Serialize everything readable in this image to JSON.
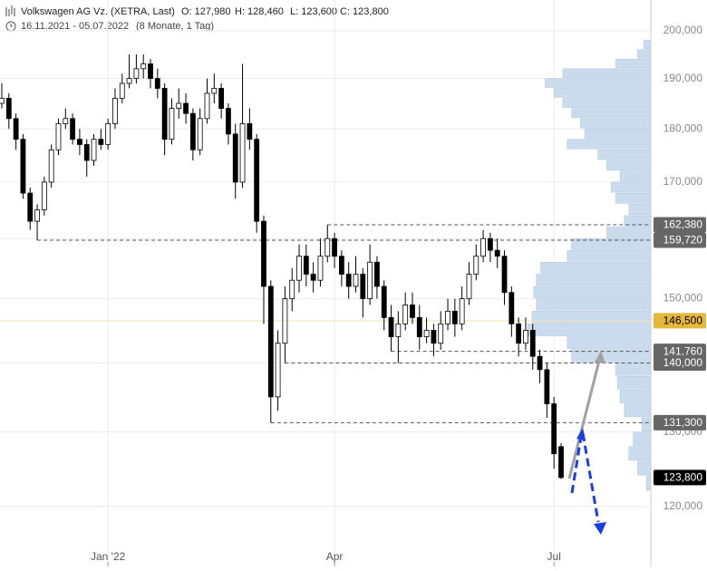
{
  "chart_data": {
    "type": "candlestick",
    "header": {
      "title": "Volkswagen AG Vz. (XETRA, Last)",
      "ohlc": [
        "O: 127,980",
        "H: 128,460",
        "L: 123,600",
        "C: 123,800"
      ],
      "range": "16.11.2021 - 05.07.2022",
      "period": "(8 Monate, 1 Tag)"
    },
    "categories": [
      null,
      null,
      null,
      null,
      null,
      null,
      null,
      null,
      null,
      null,
      null,
      null,
      null,
      null,
      null,
      "Jan '22",
      null,
      null,
      null,
      null,
      null,
      null,
      null,
      null,
      null,
      null,
      null,
      null,
      null,
      null,
      null,
      null,
      null,
      null,
      null,
      null,
      null,
      null,
      null,
      null,
      null,
      null,
      null,
      null,
      null,
      null,
      null,
      "Apr",
      null,
      null,
      null,
      null,
      null,
      null,
      null,
      null,
      null,
      null,
      null,
      null,
      null,
      null,
      null,
      null,
      null,
      null,
      null,
      null,
      null,
      null,
      null,
      null,
      null,
      null,
      null,
      null,
      null,
      null,
      "Jul",
      null
    ],
    "open": [
      185000,
      186000,
      182000,
      178000,
      168000,
      163000,
      165000,
      170000,
      176000,
      181000,
      182000,
      178000,
      177000,
      174000,
      178000,
      177000,
      181000,
      186000,
      189000,
      190000,
      192000,
      193000,
      190000,
      188000,
      178000,
      184000,
      185000,
      183000,
      176000,
      182000,
      187000,
      188000,
      184000,
      179000,
      170000,
      181000,
      178000,
      163000,
      152000,
      135000,
      143000,
      150000,
      153000,
      157000,
      154000,
      153000,
      157000,
      160000,
      157000,
      154000,
      152000,
      154000,
      150000,
      156000,
      152000,
      147000,
      144000,
      146000,
      149000,
      147000,
      144000,
      145000,
      143000,
      146000,
      148000,
      146000,
      150000,
      154000,
      157000,
      160000,
      158000,
      157000,
      151000,
      146000,
      143000,
      145000,
      141000,
      139000,
      134000,
      127980
    ],
    "high": [
      189000,
      187000,
      183000,
      179000,
      169000,
      166000,
      171000,
      177000,
      182000,
      184000,
      183000,
      180000,
      178000,
      179000,
      180000,
      182000,
      188000,
      191000,
      195000,
      195000,
      195000,
      194000,
      192000,
      189000,
      186000,
      188000,
      187000,
      184000,
      184000,
      190000,
      191000,
      189000,
      185000,
      181000,
      193000,
      184000,
      179000,
      164000,
      153000,
      145000,
      152000,
      155000,
      159000,
      159000,
      156000,
      160000,
      162380,
      161000,
      158000,
      156000,
      157000,
      155000,
      159000,
      157000,
      153000,
      149000,
      148000,
      151000,
      151000,
      149000,
      147000,
      146000,
      148000,
      150000,
      150000,
      152000,
      156000,
      159000,
      161500,
      161000,
      160000,
      158000,
      152000,
      147000,
      147000,
      146000,
      142000,
      140000,
      135000,
      128460
    ],
    "low": [
      184000,
      180000,
      176000,
      167000,
      161500,
      159720,
      164000,
      169000,
      175000,
      180000,
      177000,
      175000,
      171000,
      173000,
      176000,
      176000,
      180000,
      185000,
      188000,
      189000,
      190000,
      188000,
      186000,
      175000,
      177000,
      182000,
      181000,
      174000,
      175000,
      181000,
      185000,
      182000,
      177000,
      167000,
      169000,
      176000,
      161000,
      146000,
      131300,
      133000,
      140000,
      148000,
      151000,
      152000,
      151000,
      152000,
      156000,
      155000,
      152000,
      150000,
      151000,
      147000,
      149000,
      150000,
      145000,
      141760,
      140000,
      145000,
      146000,
      142000,
      143000,
      141000,
      142000,
      145000,
      144000,
      145000,
      149000,
      153000,
      156000,
      156000,
      155000,
      149000,
      144000,
      141000,
      142000,
      139000,
      137000,
      132000,
      125000,
      123600
    ],
    "close": [
      186000,
      182000,
      178000,
      168000,
      163000,
      165000,
      170000,
      176000,
      181000,
      182000,
      178000,
      177000,
      174000,
      178000,
      177000,
      181000,
      186000,
      189000,
      190000,
      192000,
      193000,
      190000,
      188000,
      178000,
      184000,
      185000,
      183000,
      176000,
      182000,
      187000,
      188000,
      184000,
      179000,
      170000,
      181000,
      178000,
      163000,
      152000,
      135000,
      143000,
      150000,
      153000,
      157000,
      154000,
      153000,
      157000,
      160000,
      157000,
      154000,
      152000,
      154000,
      150000,
      156000,
      152000,
      147000,
      144000,
      146000,
      149000,
      147000,
      144000,
      145000,
      143000,
      146000,
      148000,
      146000,
      150000,
      154000,
      157000,
      160000,
      158000,
      157000,
      151000,
      146000,
      143000,
      145000,
      141000,
      139000,
      134000,
      127000,
      123800
    ],
    "ylim": [
      115300,
      206700
    ],
    "log_scale": true,
    "grid": true,
    "yticks": [
      {
        "value": 120000,
        "label": "120,000"
      },
      {
        "value": 130000,
        "label": "130,000"
      },
      {
        "value": 140000,
        "label": "140,000"
      },
      {
        "value": 150000,
        "label": "150,000"
      },
      {
        "value": 160000,
        "label": "160,000"
      },
      {
        "value": 170000,
        "label": "170,000"
      },
      {
        "value": 180000,
        "label": "180,000"
      },
      {
        "value": 190000,
        "label": "190,000"
      },
      {
        "value": 200000,
        "label": "200,000"
      }
    ],
    "price_labels": [
      {
        "value": 162380,
        "label": "162,380",
        "style": "dashed",
        "color": "#666666"
      },
      {
        "value": 159720,
        "label": "159,720",
        "style": "dashed",
        "color": "#666666"
      },
      {
        "value": 146500,
        "label": "146,500",
        "style": "highlight",
        "color": "#e5b73b"
      },
      {
        "value": 141760,
        "label": "141,760",
        "style": "dashed",
        "color": "#666666"
      },
      {
        "value": 140000,
        "label": "140,000",
        "style": "dashed",
        "color": "#666666"
      },
      {
        "value": 131300,
        "label": "131,300",
        "style": "dashed",
        "color": "#666666"
      },
      {
        "value": 123800,
        "label": "123,800",
        "style": "last",
        "color": "#000000"
      }
    ],
    "volume_profile": {
      "color": "#c9dbec",
      "bins": [
        118000,
        120000,
        122000,
        124000,
        126000,
        128000,
        130000,
        132000,
        134000,
        136000,
        138000,
        140000,
        142000,
        144000,
        146000,
        148000,
        150000,
        152000,
        154000,
        156000,
        158000,
        160000,
        162000,
        164000,
        166000,
        168000,
        170000,
        172000,
        174000,
        176000,
        178000,
        180000,
        182000,
        184000,
        186000,
        188000,
        190000,
        192000,
        194000,
        196000,
        198000,
        200000
      ],
      "values": [
        0,
        0,
        5,
        15,
        25,
        20,
        10,
        30,
        35,
        38,
        40,
        90,
        95,
        140,
        135,
        130,
        133,
        130,
        125,
        95,
        90,
        50,
        30,
        25,
        40,
        45,
        35,
        50,
        60,
        95,
        75,
        80,
        90,
        100,
        110,
        120,
        100,
        40,
        15,
        8,
        0
      ]
    }
  }
}
